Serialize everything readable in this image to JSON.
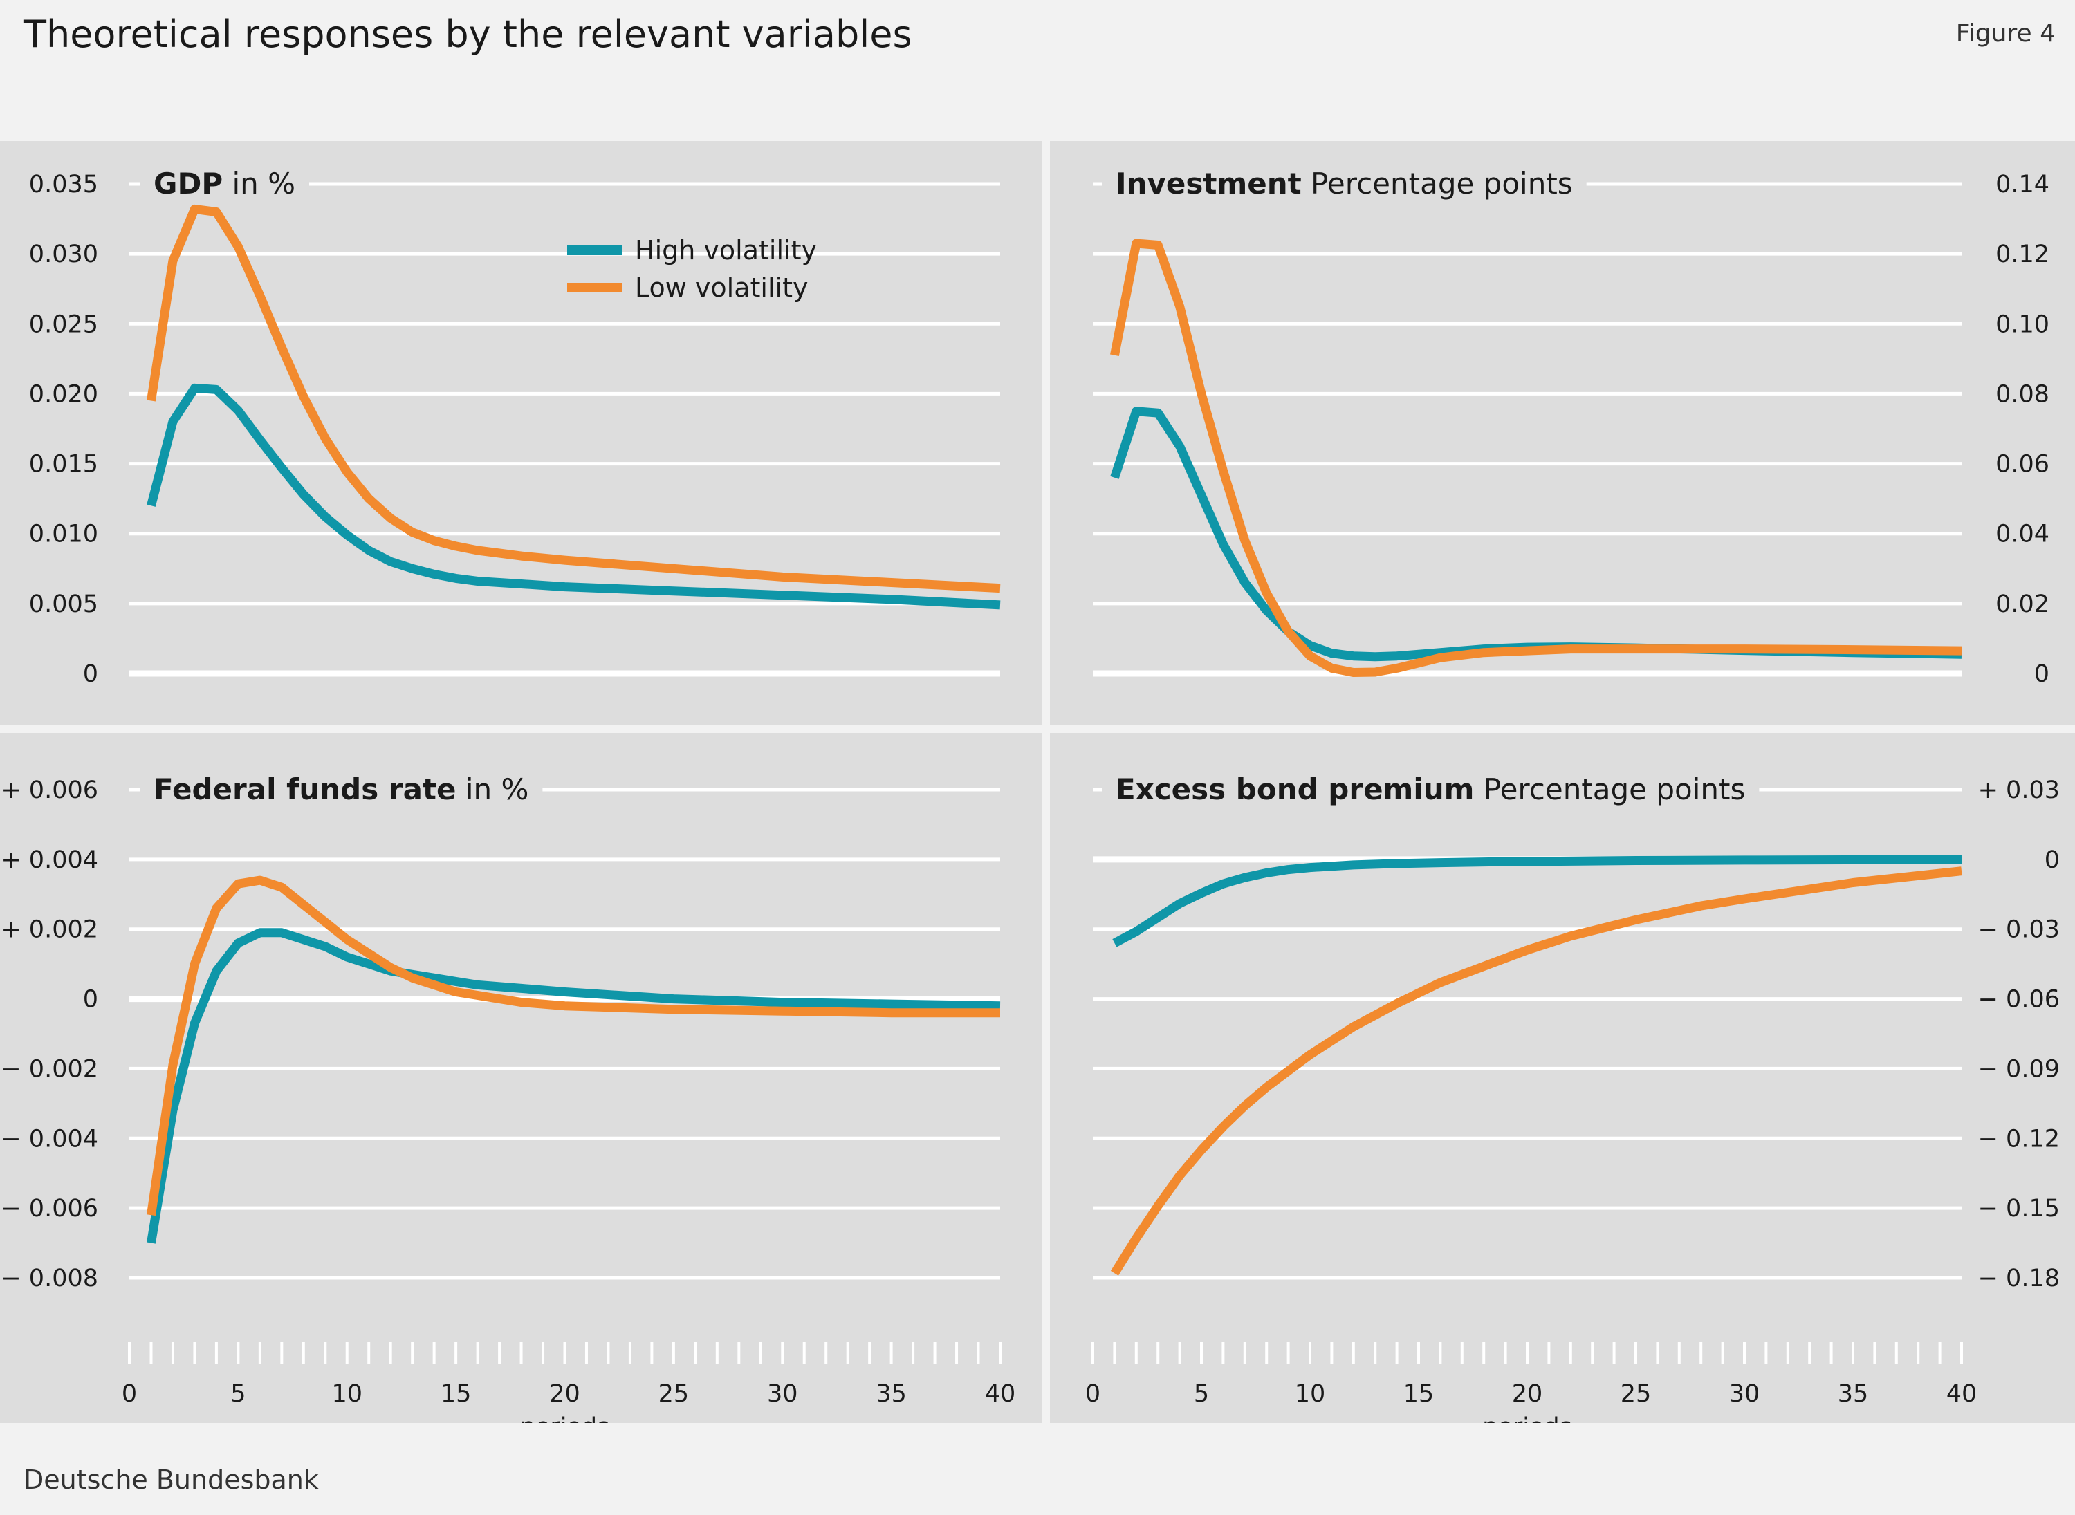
{
  "header": {
    "title": "Theoretical responses by the relevant variables",
    "figure_label": "Figure 4"
  },
  "footer": {
    "source": "Deutsche Bundesbank"
  },
  "colors": {
    "high_volatility": "#0f96a8",
    "low_volatility": "#f28a2e",
    "panel_bg": "#dddddd",
    "grid": "#ffffff"
  },
  "chart_data": [
    {
      "id": "gdp",
      "type": "line",
      "title": "GDP",
      "unit": "in %",
      "axis_side": "left",
      "ylim": [
        0,
        0.035
      ],
      "yticks": [
        0,
        0.005,
        0.01,
        0.015,
        0.02,
        0.025,
        0.03,
        0.035
      ],
      "ytick_labels": [
        "0",
        "0.005",
        "0.010",
        "0.015",
        "0.020",
        "0.025",
        "0.030",
        "0.035"
      ],
      "xlim": [
        0,
        40
      ],
      "xticks": [],
      "xlabel": "",
      "legend": {
        "placement": "top-center",
        "entries": [
          {
            "name": "High volatility",
            "color": "#0f96a8"
          },
          {
            "name": "Low volatility",
            "color": "#f28a2e"
          }
        ]
      },
      "series": [
        {
          "name": "High volatility",
          "color": "#0f96a8",
          "x": [
            1,
            2,
            3,
            4,
            5,
            6,
            7,
            8,
            9,
            10,
            11,
            12,
            13,
            14,
            15,
            16,
            18,
            20,
            25,
            30,
            35,
            40
          ],
          "values": [
            0.012,
            0.018,
            0.0204,
            0.0203,
            0.0188,
            0.0167,
            0.0147,
            0.0128,
            0.0112,
            0.0099,
            0.0088,
            0.008,
            0.0075,
            0.0071,
            0.0068,
            0.0066,
            0.0064,
            0.0062,
            0.0059,
            0.0056,
            0.0053,
            0.0049
          ]
        },
        {
          "name": "Low volatility",
          "color": "#f28a2e",
          "x": [
            1,
            2,
            3,
            4,
            5,
            6,
            7,
            8,
            9,
            10,
            11,
            12,
            13,
            14,
            15,
            16,
            17,
            18,
            20,
            25,
            30,
            35,
            40
          ],
          "values": [
            0.0195,
            0.0295,
            0.0332,
            0.033,
            0.0305,
            0.027,
            0.0233,
            0.0198,
            0.0168,
            0.0144,
            0.0125,
            0.0111,
            0.0101,
            0.0095,
            0.0091,
            0.0088,
            0.0086,
            0.0084,
            0.0081,
            0.0075,
            0.0069,
            0.0065,
            0.0061
          ]
        }
      ]
    },
    {
      "id": "investment",
      "type": "line",
      "title": "Investment",
      "unit": "Percentage points",
      "axis_side": "right",
      "ylim": [
        0,
        0.14
      ],
      "yticks": [
        0,
        0.02,
        0.04,
        0.06,
        0.08,
        0.1,
        0.12,
        0.14
      ],
      "ytick_labels": [
        "0",
        "0.02",
        "0.04",
        "0.06",
        "0.08",
        "0.10",
        "0.12",
        "0.14"
      ],
      "xlim": [
        0,
        40
      ],
      "xticks": [],
      "xlabel": "",
      "series": [
        {
          "name": "High volatility",
          "color": "#0f96a8",
          "x": [
            1,
            2,
            3,
            4,
            5,
            6,
            7,
            8,
            9,
            10,
            11,
            12,
            13,
            14,
            16,
            18,
            20,
            22,
            25,
            30,
            35,
            40
          ],
          "values": [
            0.056,
            0.075,
            0.0745,
            0.065,
            0.051,
            0.037,
            0.026,
            0.018,
            0.012,
            0.008,
            0.0058,
            0.005,
            0.0048,
            0.005,
            0.006,
            0.007,
            0.0075,
            0.0076,
            0.0073,
            0.0066,
            0.006,
            0.0055
          ]
        },
        {
          "name": "Low volatility",
          "color": "#f28a2e",
          "x": [
            1,
            2,
            3,
            4,
            5,
            6,
            7,
            8,
            9,
            10,
            11,
            12,
            13,
            14,
            15,
            16,
            18,
            20,
            22,
            25,
            30,
            35,
            40
          ],
          "values": [
            0.091,
            0.123,
            0.1225,
            0.105,
            0.08,
            0.058,
            0.038,
            0.023,
            0.012,
            0.005,
            0.0015,
            0.0003,
            0.0004,
            0.0015,
            0.003,
            0.0045,
            0.006,
            0.0065,
            0.007,
            0.007,
            0.007,
            0.0068,
            0.0065
          ]
        }
      ]
    },
    {
      "id": "federal_funds_rate",
      "type": "line",
      "title": "Federal funds rate",
      "unit": "in %",
      "axis_side": "left",
      "ylim": [
        -0.008,
        0.006
      ],
      "yticks": [
        -0.008,
        -0.006,
        -0.004,
        -0.002,
        0,
        0.002,
        0.004,
        0.006
      ],
      "ytick_labels": [
        "− 0.008",
        "− 0.006",
        "− 0.004",
        "− 0.002",
        "0",
        "+ 0.002",
        "+ 0.004",
        "+ 0.006"
      ],
      "xlim": [
        0,
        40
      ],
      "xticks": [
        0,
        5,
        10,
        15,
        20,
        25,
        30,
        35,
        40
      ],
      "xtick_labels": [
        "0",
        "5",
        "10",
        "15",
        "20",
        "25",
        "30",
        "35",
        "40"
      ],
      "xlabel": "periods",
      "series": [
        {
          "name": "High volatility",
          "color": "#0f96a8",
          "x": [
            1,
            2,
            3,
            4,
            5,
            6,
            7,
            8,
            9,
            10,
            11,
            12,
            13,
            14,
            15,
            16,
            18,
            20,
            25,
            30,
            35,
            40
          ],
          "values": [
            -0.007,
            -0.0032,
            -0.0007,
            0.0008,
            0.0016,
            0.0019,
            0.0019,
            0.0017,
            0.0015,
            0.0012,
            0.001,
            0.0008,
            0.0007,
            0.0006,
            0.0005,
            0.0004,
            0.0003,
            0.0002,
            0.0,
            -0.0001,
            -0.00015,
            -0.0002
          ]
        },
        {
          "name": "Low volatility",
          "color": "#f28a2e",
          "x": [
            1,
            2,
            3,
            4,
            5,
            6,
            7,
            8,
            9,
            10,
            11,
            12,
            13,
            14,
            15,
            16,
            18,
            20,
            25,
            30,
            35,
            40
          ],
          "values": [
            -0.0062,
            -0.0019,
            0.001,
            0.0026,
            0.0033,
            0.0034,
            0.0032,
            0.0027,
            0.0022,
            0.0017,
            0.0013,
            0.0009,
            0.0006,
            0.0004,
            0.0002,
            0.0001,
            -0.0001,
            -0.0002,
            -0.0003,
            -0.00035,
            -0.0004,
            -0.0004
          ]
        }
      ]
    },
    {
      "id": "excess_bond_premium",
      "type": "line",
      "title": "Excess bond premium",
      "unit": "Percentage points",
      "axis_side": "right",
      "ylim": [
        -0.18,
        0.03
      ],
      "yticks": [
        -0.18,
        -0.15,
        -0.12,
        -0.09,
        -0.06,
        -0.03,
        0,
        0.03
      ],
      "ytick_labels": [
        "− 0.18",
        "− 0.15",
        "− 0.12",
        "− 0.09",
        "− 0.06",
        "− 0.03",
        "0",
        "+ 0.03"
      ],
      "xlim": [
        0,
        40
      ],
      "xticks": [
        0,
        5,
        10,
        15,
        20,
        25,
        30,
        35,
        40
      ],
      "xtick_labels": [
        "0",
        "5",
        "10",
        "15",
        "20",
        "25",
        "30",
        "35",
        "40"
      ],
      "xlabel": "periods",
      "series": [
        {
          "name": "High volatility",
          "color": "#0f96a8",
          "x": [
            1,
            2,
            3,
            4,
            5,
            6,
            7,
            8,
            9,
            10,
            12,
            14,
            16,
            18,
            20,
            25,
            30,
            35,
            40
          ],
          "values": [
            -0.036,
            -0.031,
            -0.025,
            -0.019,
            -0.0145,
            -0.0105,
            -0.0078,
            -0.0058,
            -0.0044,
            -0.0035,
            -0.0024,
            -0.0018,
            -0.0014,
            -0.0011,
            -0.0009,
            -0.0005,
            -0.0003,
            -0.0002,
            -0.0001
          ]
        },
        {
          "name": "Low volatility",
          "color": "#f28a2e",
          "x": [
            1,
            2,
            3,
            4,
            5,
            6,
            7,
            8,
            9,
            10,
            12,
            14,
            16,
            18,
            20,
            22,
            25,
            28,
            30,
            35,
            40
          ],
          "values": [
            -0.178,
            -0.163,
            -0.149,
            -0.136,
            -0.125,
            -0.115,
            -0.106,
            -0.098,
            -0.091,
            -0.084,
            -0.072,
            -0.062,
            -0.053,
            -0.046,
            -0.039,
            -0.033,
            -0.026,
            -0.02,
            -0.017,
            -0.01,
            -0.005
          ]
        }
      ]
    }
  ]
}
